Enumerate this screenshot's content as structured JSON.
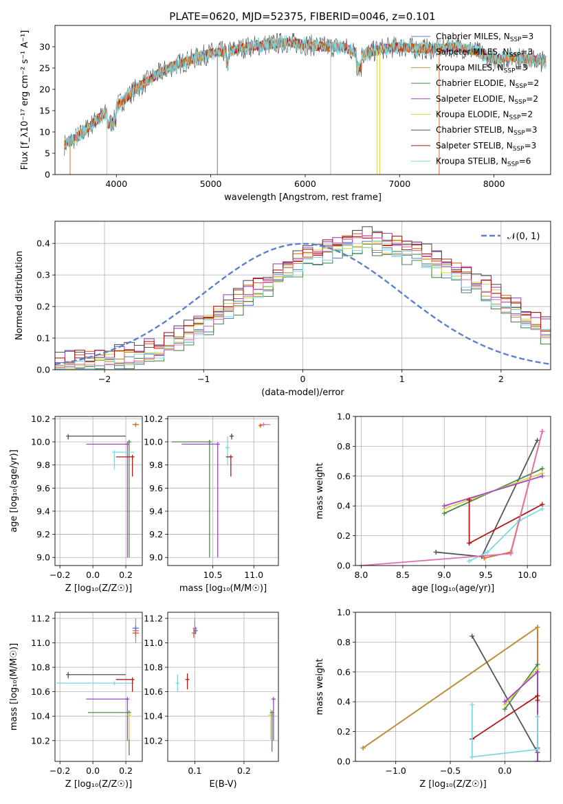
{
  "figure": {
    "title": "PLATE=0620, MJD=52375, FIBERID=0046, z=0.101"
  },
  "colors": {
    "chabrier_miles": "#5a7fcc",
    "salpeter_miles": "#d66a1f",
    "kroupa_miles": "#b8923a",
    "chabrier_elodie": "#4a8a4a",
    "salpeter_elodie": "#a640c8",
    "kroupa_elodie": "#d4d645",
    "chabrier_stelib": "#555555",
    "salpeter_stelib": "#b01818",
    "kroupa_stelib": "#7fd8e0",
    "pink": "#e070b0",
    "normal_curve": "#5a7fcc"
  },
  "chart_data": [
    {
      "id": "spectrum",
      "type": "line",
      "xlabel": "wavelength [Angstrom, rest frame]",
      "ylabel": "Flux [f_λ10⁻¹⁷ erg cm⁻² s⁻¹ A⁻¹]",
      "xlim": [
        3350,
        8600
      ],
      "ylim": [
        0,
        35
      ],
      "xticks": [
        4000,
        5000,
        6000,
        7000,
        8000
      ],
      "yticks": [
        0,
        5,
        10,
        15,
        20,
        25,
        30
      ],
      "legend_position": "upper-right",
      "legend": [
        {
          "label": "Chabrier MILES, N",
          "sub": "SSP",
          "suffix": "=3",
          "color": "#5a7fcc"
        },
        {
          "label": "Salpeter MILES, N",
          "sub": "SSP",
          "suffix": "=3",
          "color": "#d66a1f"
        },
        {
          "label": "Kroupa MILES, N",
          "sub": "SSP",
          "suffix": "=3",
          "color": "#b8923a"
        },
        {
          "label": "Chabrier ELODIE, N",
          "sub": "SSP",
          "suffix": "=2",
          "color": "#4a8a4a"
        },
        {
          "label": "Salpeter ELODIE, N",
          "sub": "SSP",
          "suffix": "=2",
          "color": "#a640c8"
        },
        {
          "label": "Kroupa ELODIE, N",
          "sub": "SSP",
          "suffix": "=2",
          "color": "#d4d645"
        },
        {
          "label": "Chabrier STELIB, N",
          "sub": "SSP",
          "suffix": "=3",
          "color": "#555555"
        },
        {
          "label": "Salpeter STELIB, N",
          "sub": "SSP",
          "suffix": "=3",
          "color": "#b01818"
        },
        {
          "label": "Kroupa STELIB, N",
          "sub": "SSP",
          "suffix": "=6",
          "color": "#7fd8e0"
        }
      ],
      "continuum": {
        "x": [
          3450,
          3600,
          3800,
          4000,
          4200,
          4400,
          4600,
          4800,
          5000,
          5200,
          5400,
          5600,
          5800,
          6000,
          6200,
          6400,
          6600,
          6800,
          7000,
          7200,
          7400,
          7600,
          7800,
          8000,
          8200,
          8400,
          8550
        ],
        "y": [
          7,
          9,
          13,
          16,
          20,
          23,
          25.5,
          27,
          28.5,
          29,
          30,
          30.5,
          31,
          30.5,
          30,
          30,
          28,
          29.5,
          30,
          29.5,
          29.5,
          30,
          29,
          27,
          27.5,
          27,
          26.5
        ]
      },
      "drops": [
        {
          "x": 3510,
          "bottom": 0,
          "color": "#d66a1f"
        },
        {
          "x": 3900,
          "bottom": 0,
          "color": "#d4d645"
        },
        {
          "x": 5070,
          "bottom": 0,
          "color": "#777777"
        },
        {
          "x": 6270,
          "bottom": 0,
          "color": "#bbbbbb"
        },
        {
          "x": 6760,
          "bottom": 0,
          "color": "#d4d645"
        },
        {
          "x": 6790,
          "bottom": 0,
          "color": "#d4d645"
        },
        {
          "x": 7420,
          "bottom": 0,
          "color": "#d66a1f"
        }
      ]
    },
    {
      "id": "residuals",
      "type": "histogram",
      "xlabel": "(data-model)/error",
      "ylabel": "Normed distribution",
      "xlim": [
        -2.5,
        2.5
      ],
      "ylim": [
        0,
        0.47
      ],
      "xticks": [
        -2,
        -1,
        0,
        1,
        2
      ],
      "yticks": [
        0.0,
        0.1,
        0.2,
        0.3,
        0.4
      ],
      "grid": true,
      "legend_position": "upper-right",
      "legend": [
        {
          "label": "𝒩(0, 1)",
          "style": "dashed",
          "color": "#5a7fcc"
        }
      ],
      "normal": {
        "mean": 0,
        "std": 1
      },
      "bins_start": -2.5,
      "bin_width": 0.1,
      "base": [
        0.015,
        0.02,
        0.03,
        0.03,
        0.03,
        0.035,
        0.04,
        0.045,
        0.05,
        0.06,
        0.07,
        0.085,
        0.1,
        0.115,
        0.135,
        0.155,
        0.175,
        0.2,
        0.22,
        0.24,
        0.26,
        0.28,
        0.3,
        0.32,
        0.34,
        0.35,
        0.365,
        0.38,
        0.39,
        0.4,
        0.405,
        0.41,
        0.405,
        0.395,
        0.39,
        0.38,
        0.37,
        0.355,
        0.34,
        0.325,
        0.31,
        0.29,
        0.27,
        0.255,
        0.235,
        0.21,
        0.19,
        0.17,
        0.15,
        0.125
      ],
      "series": [
        {
          "name": "Chabrier MILES",
          "color": "#5a7fcc",
          "offset": -0.02
        },
        {
          "name": "Salpeter MILES",
          "color": "#d66a1f",
          "offset": 0.01
        },
        {
          "name": "Kroupa MILES",
          "color": "#b8923a",
          "offset": -0.01
        },
        {
          "name": "Chabrier ELODIE",
          "color": "#4a8a4a",
          "offset": -0.03
        },
        {
          "name": "Salpeter ELODIE",
          "color": "#a640c8",
          "offset": 0.02
        },
        {
          "name": "Kroupa ELODIE",
          "color": "#d4d645",
          "offset": 0.0
        },
        {
          "name": "Chabrier STELIB",
          "color": "#555555",
          "offset": 0.025
        },
        {
          "name": "Salpeter STELIB",
          "color": "#b01818",
          "offset": 0.015
        },
        {
          "name": "Kroupa STELIB",
          "color": "#7fd8e0",
          "offset": -0.015
        },
        {
          "name": "pink",
          "color": "#e070b0",
          "offset": -0.005
        }
      ]
    },
    {
      "id": "z-age",
      "type": "errorbar",
      "xlabel": "Z [log₁₀(Z/Z☉)]",
      "ylabel": "age  [log₁₀(age/yr)]",
      "xlim": [
        -0.23,
        0.3
      ],
      "ylim": [
        8.93,
        10.22
      ],
      "xticks": [
        -0.2,
        0.0,
        0.2
      ],
      "yticks": [
        9.0,
        9.2,
        9.4,
        9.6,
        9.8,
        10.0,
        10.2
      ],
      "bars": [
        {
          "x": -0.15,
          "y": 10.05,
          "xerr": [
            0.0,
            0.35
          ],
          "yerr": [
            0.03,
            0.0
          ],
          "color": "#555555"
        },
        {
          "x": 0.26,
          "y": 10.15,
          "xerr": [
            0.02,
            0.02
          ],
          "yerr": [
            0.02,
            0.01
          ],
          "color": "#d66a1f"
        },
        {
          "x": 0.22,
          "y": 10.0,
          "xerr": [
            0.0,
            0.0
          ],
          "yerr": [
            1.0,
            0.0
          ],
          "color": "#4a8a4a"
        },
        {
          "x": 0.21,
          "y": 9.98,
          "xerr": [
            0.25,
            0.0
          ],
          "yerr": [
            0.98,
            0.0
          ],
          "color": "#a640c8"
        },
        {
          "x": 0.13,
          "y": 9.91,
          "xerr": [
            0.0,
            0.12
          ],
          "yerr": [
            0.15,
            0.0
          ],
          "color": "#7fd8e0"
        },
        {
          "x": 0.24,
          "y": 9.87,
          "xerr": [
            0.1,
            0.0
          ],
          "yerr": [
            0.17,
            0.0
          ],
          "color": "#b01818"
        }
      ]
    },
    {
      "id": "mass-age",
      "type": "errorbar",
      "xlabel": "mass [log₁₀(M/M☉)]",
      "ylabel": "",
      "xlim": [
        9.95,
        11.3
      ],
      "ylim": [
        8.93,
        10.22
      ],
      "xticks": [
        10.5,
        11.0
      ],
      "yticks": [
        9.0,
        9.2,
        9.4,
        9.6,
        9.8,
        10.0,
        10.2
      ],
      "bars": [
        {
          "x": 10.46,
          "y": 10.0,
          "xerr": [
            0.46,
            0.0
          ],
          "yerr": [
            1.0,
            0.0
          ],
          "color": "#4a8a4a"
        },
        {
          "x": 10.56,
          "y": 9.98,
          "xerr": [
            0.44,
            0.0
          ],
          "yerr": [
            0.98,
            0.0
          ],
          "color": "#a640c8"
        },
        {
          "x": 10.73,
          "y": 10.05,
          "xerr": [
            0.02,
            0.02
          ],
          "yerr": [
            0.03,
            0.02
          ],
          "color": "#555555"
        },
        {
          "x": 10.68,
          "y": 9.95,
          "xerr": [
            0.02,
            0.0
          ],
          "yerr": [
            0.15,
            0.1
          ],
          "color": "#7fd8e0"
        },
        {
          "x": 10.72,
          "y": 9.87,
          "xerr": [
            0.06,
            0.0
          ],
          "yerr": [
            0.17,
            0.0
          ],
          "color": "#b01818"
        },
        {
          "x": 11.12,
          "y": 10.15,
          "xerr": [
            0.05,
            0.08
          ],
          "yerr": [
            0.01,
            0.01
          ],
          "color": "#e070b0"
        },
        {
          "x": 11.08,
          "y": 10.14,
          "xerr": [
            0.02,
            0.02
          ],
          "yerr": [
            0.01,
            0.01
          ],
          "color": "#d66a1f"
        }
      ]
    },
    {
      "id": "age-weight",
      "type": "line",
      "xlabel": "age  [log₁₀(age/yr)]",
      "ylabel": "mass weight",
      "xlim": [
        7.93,
        10.28
      ],
      "ylim": [
        0.0,
        1.0
      ],
      "xticks": [
        8.0,
        8.5,
        9.0,
        9.5,
        10.0
      ],
      "yticks": [
        0.0,
        0.2,
        0.4,
        0.6,
        0.8,
        1.0
      ],
      "grid": true,
      "series": [
        {
          "name": "Salpeter MILES",
          "color": "#d66a1f",
          "x": [
            9.48,
            9.8,
            10.18
          ],
          "y": [
            0.05,
            0.09,
            0.9
          ]
        },
        {
          "name": "Chabrier STELIB",
          "color": "#555555",
          "x": [
            8.9,
            9.45,
            10.12
          ],
          "y": [
            0.09,
            0.06,
            0.84
          ]
        },
        {
          "name": "Chabrier ELODIE",
          "color": "#4a8a4a",
          "x": [
            9.0,
            10.18
          ],
          "y": [
            0.35,
            0.65
          ]
        },
        {
          "name": "Kroupa ELODIE",
          "color": "#d4d645",
          "x": [
            9.0,
            10.18
          ],
          "y": [
            0.38,
            0.62
          ]
        },
        {
          "name": "Salpeter ELODIE",
          "color": "#a640c8",
          "x": [
            9.0,
            10.18
          ],
          "y": [
            0.4,
            0.6
          ]
        },
        {
          "name": "Salpeter STELIB",
          "color": "#b01818",
          "x": [
            9.3,
            9.3,
            10.18
          ],
          "y": [
            0.44,
            0.15,
            0.41
          ]
        },
        {
          "name": "Kroupa STELIB",
          "color": "#7fd8e0",
          "x": [
            9.3,
            9.52,
            9.9,
            10.18
          ],
          "y": [
            0.03,
            0.09,
            0.3,
            0.38
          ]
        },
        {
          "name": "pink",
          "color": "#e070b0",
          "x": [
            8.0,
            9.8,
            10.18
          ],
          "y": [
            0.0,
            0.08,
            0.9
          ]
        }
      ]
    },
    {
      "id": "z-mass",
      "type": "errorbar",
      "xlabel": "Z [log₁₀(Z/Z☉)]",
      "ylabel": "mass [log₁₀(M/M☉)]",
      "xlim": [
        -0.23,
        0.3
      ],
      "ylim": [
        10.03,
        11.25
      ],
      "xticks": [
        -0.2,
        0.0,
        0.2
      ],
      "yticks": [
        10.2,
        10.4,
        10.6,
        10.8,
        11.0,
        11.2
      ],
      "bars": [
        {
          "x": -0.15,
          "y": 10.74,
          "xerr": [
            0.0,
            0.35
          ],
          "yerr": [
            0.03,
            0.02
          ],
          "color": "#555555"
        },
        {
          "x": 0.13,
          "y": 10.67,
          "xerr": [
            0.35,
            0.12
          ],
          "yerr": [
            0.0,
            0.0
          ],
          "color": "#7fd8e0"
        },
        {
          "x": 0.24,
          "y": 10.7,
          "xerr": [
            0.1,
            0.0
          ],
          "yerr": [
            0.1,
            0.0
          ],
          "color": "#b01818"
        },
        {
          "x": 0.21,
          "y": 10.54,
          "xerr": [
            0.25,
            0.0
          ],
          "yerr": [
            0.34,
            0.0
          ],
          "color": "#a640c8"
        },
        {
          "x": 0.22,
          "y": 10.43,
          "xerr": [
            0.25,
            0.0
          ],
          "yerr": [
            0.35,
            0.0
          ],
          "color": "#4a8a4a"
        },
        {
          "x": 0.22,
          "y": 10.41,
          "xerr": [
            0.0,
            0.0
          ],
          "yerr": [
            0.2,
            0.0
          ],
          "color": "#d4d645"
        },
        {
          "x": 0.26,
          "y": 11.1,
          "xerr": [
            0.02,
            0.02
          ],
          "yerr": [
            0.1,
            0.1
          ],
          "color": "#e070b0"
        },
        {
          "x": 0.26,
          "y": 11.08,
          "xerr": [
            0.02,
            0.02
          ],
          "yerr": [
            0.03,
            0.03
          ],
          "color": "#d66a1f"
        },
        {
          "x": 0.26,
          "y": 11.12,
          "xerr": [
            0.02,
            0.02
          ],
          "yerr": [
            0.02,
            0.02
          ],
          "color": "#5a7fcc"
        }
      ]
    },
    {
      "id": "ebv-mass",
      "type": "errorbar",
      "xlabel": "E(B-V)",
      "ylabel": "",
      "xlim": [
        0.045,
        0.27
      ],
      "ylim": [
        10.03,
        11.25
      ],
      "xticks": [
        0.1,
        0.2
      ],
      "yticks": [
        10.2,
        10.4,
        10.6,
        10.8,
        11.0,
        11.2
      ],
      "bars": [
        {
          "x": 0.065,
          "y": 10.67,
          "xerr": [
            0.0,
            0.0
          ],
          "yerr": [
            0.07,
            0.07
          ],
          "color": "#7fd8e0"
        },
        {
          "x": 0.085,
          "y": 10.7,
          "xerr": [
            0.0,
            0.0
          ],
          "yerr": [
            0.08,
            0.05
          ],
          "color": "#b01818"
        },
        {
          "x": 0.1,
          "y": 11.12,
          "xerr": [
            0.0,
            0.0
          ],
          "yerr": [
            0.05,
            0.08
          ],
          "color": "#e070b0"
        },
        {
          "x": 0.098,
          "y": 11.08,
          "xerr": [
            0.0,
            0.0
          ],
          "yerr": [
            0.04,
            0.04
          ],
          "color": "#d66a1f"
        },
        {
          "x": 0.102,
          "y": 11.1,
          "xerr": [
            0.0,
            0.0
          ],
          "yerr": [
            0.03,
            0.03
          ],
          "color": "#5a7fcc"
        },
        {
          "x": 0.254,
          "y": 10.41,
          "xerr": [
            0.0,
            0.0
          ],
          "yerr": [
            0.2,
            0.05
          ],
          "color": "#d4d645"
        },
        {
          "x": 0.257,
          "y": 10.43,
          "xerr": [
            0.0,
            0.0
          ],
          "yerr": [
            0.32,
            0.0
          ],
          "color": "#4a8a4a"
        },
        {
          "x": 0.26,
          "y": 10.54,
          "xerr": [
            0.0,
            0.0
          ],
          "yerr": [
            0.34,
            0.0
          ],
          "color": "#a640c8"
        }
      ]
    },
    {
      "id": "z-weight",
      "type": "line",
      "xlabel": "Z [log₁₀(Z/Z☉)]",
      "ylabel": "mass weight",
      "xlim": [
        -1.37,
        0.42
      ],
      "ylim": [
        0.0,
        1.0
      ],
      "xticks": [
        -1.0,
        -0.5,
        0.0
      ],
      "yticks": [
        0.0,
        0.2,
        0.4,
        0.6,
        0.8,
        1.0
      ],
      "grid": true,
      "series": [
        {
          "name": "Salpeter MILES",
          "color": "#d66a1f",
          "x": [
            -1.3,
            0.3,
            0.3
          ],
          "y": [
            0.09,
            0.9,
            0.0
          ]
        },
        {
          "name": "Kroupa MILES",
          "color": "#b8923a",
          "x": [
            -1.3,
            0.3
          ],
          "y": [
            0.09,
            0.9
          ]
        },
        {
          "name": "Chabrier STELIB",
          "color": "#555555",
          "x": [
            -0.3,
            0.3,
            0.3
          ],
          "y": [
            0.84,
            0.06,
            0.09
          ]
        },
        {
          "name": "Chabrier ELODIE",
          "color": "#4a8a4a",
          "x": [
            0.0,
            0.3,
            0.3
          ],
          "y": [
            0.35,
            0.65,
            0.0
          ]
        },
        {
          "name": "Kroupa ELODIE",
          "color": "#d4d645",
          "x": [
            0.0,
            0.3
          ],
          "y": [
            0.38,
            0.62
          ]
        },
        {
          "name": "Salpeter ELODIE",
          "color": "#a640c8",
          "x": [
            0.0,
            0.3,
            0.3
          ],
          "y": [
            0.4,
            0.6,
            0.0
          ]
        },
        {
          "name": "Salpeter STELIB",
          "color": "#b01818",
          "x": [
            -0.3,
            0.3,
            0.3
          ],
          "y": [
            0.15,
            0.44,
            0.41
          ]
        },
        {
          "name": "Kroupa STELIB",
          "color": "#7fd8e0",
          "x": [
            -0.3,
            -0.3,
            0.3,
            0.3
          ],
          "y": [
            0.38,
            0.03,
            0.08,
            0.3
          ]
        }
      ]
    }
  ]
}
